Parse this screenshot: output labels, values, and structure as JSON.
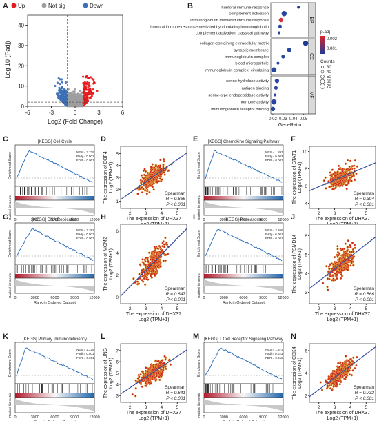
{
  "colors": {
    "up": "#e41a1c",
    "notsig": "#9e9e9e",
    "down": "#3b6fb6",
    "gsea_line": "#2c6fbb",
    "scatter_pt": "#cc2a1f",
    "fit_line": "#3a4fa0"
  },
  "chart_data": [
    {
      "panel": "A",
      "type": "scatter",
      "legend": [
        "Up",
        "Not sig",
        "Down"
      ],
      "xlabel": "Log2 (Fold Change)",
      "ylabel": "-Log 10 (Padj)",
      "xticks": [
        "-6",
        "-3",
        "0",
        "3",
        "6"
      ],
      "yticks": [
        "0",
        "10",
        "20",
        "30",
        "40"
      ],
      "xlim": [
        -6,
        6
      ],
      "ylim": [
        0,
        45
      ]
    },
    {
      "panel": "B",
      "type": "scatter",
      "xlabel": "GeneRatio",
      "xticks": [
        "0.02",
        "0.03",
        "0.04",
        "0.05"
      ],
      "groups": [
        {
          "name": "BP",
          "terms": [
            "humoral immune response",
            "complement activation",
            "immunoglobulin mediated immune response",
            "humoral immune response mediated by circulating immunoglobulin",
            "complement activation, classical pathway"
          ],
          "x": [
            0.045,
            0.031,
            0.028,
            0.027,
            0.026
          ]
        },
        {
          "name": "CC",
          "terms": [
            "collagen-containing extracellular matrix",
            "synaptic membrane",
            "immunoglobulin complex",
            "blood microparticle",
            "immunoglobulin complex, circulating"
          ],
          "x": [
            0.052,
            0.036,
            0.03,
            0.025,
            0.021
          ]
        },
        {
          "name": "MF",
          "terms": [
            "serine hydrolase activity",
            "antigen binding",
            "serine-type endopeptidase activity",
            "hormone activity",
            "immunoglobulin receptor binding"
          ],
          "x": [
            0.024,
            0.023,
            0.022,
            0.021,
            0.02
          ]
        }
      ],
      "legend_padj": {
        "title": "p.adj",
        "ticks": [
          "0.002",
          "0.001"
        ]
      },
      "legend_counts": {
        "title": "Counts",
        "values": [
          "30",
          "40",
          "50",
          "60",
          "70"
        ]
      }
    },
    {
      "panel": "C",
      "type": "line",
      "title": "[KEGG] Cell Cycle",
      "stats": [
        "NES = 2.729",
        "Padj = 0.001",
        "FDR = 0.001"
      ],
      "ylabel": "Enrichment Score",
      "ylabel2": "Ranked list metric",
      "xlabel": "Rank in Ordered Dataset",
      "xticks": [
        "0",
        "3000",
        "6000",
        "9000",
        "12000"
      ]
    },
    {
      "panel": "D",
      "type": "scatter",
      "ylabel": "The expression of DBF4",
      "ylabel2": "Log2 (TPM+1)",
      "xlabel": "The expression of DHX37",
      "xlabel2": "Log2 (TPM+1)",
      "method": "Spearman",
      "r": "R = 0.665",
      "p": "P < 0.001",
      "xticks": [
        "2",
        "3",
        "4",
        "5"
      ],
      "yticks": [
        "1",
        "2",
        "3",
        "4",
        "5"
      ]
    },
    {
      "panel": "E",
      "type": "line",
      "title": "[KEGG] Chemokine Signaling Pathway",
      "stats": [
        "NES = 1.897",
        "Padj = 0.003",
        "FDR = 0.003"
      ],
      "ylabel": "Enrichment Score",
      "ylabel2": "Ranked list metric",
      "xlabel": "Rank in Ordered Dataset",
      "xticks": [
        "0",
        "3000",
        "6000",
        "9000",
        "12000"
      ]
    },
    {
      "panel": "F",
      "type": "scatter",
      "ylabel": "The expression of STAT1",
      "ylabel2": "Log2 (TPM+1)",
      "xlabel": "The expression of DHX37",
      "xlabel2": "Log2 (TPM+1)",
      "method": "Spearman",
      "r": "R = 0.394",
      "p": "P < 0.001",
      "xticks": [
        "2",
        "3",
        "4",
        "5"
      ],
      "yticks": [
        "4",
        "6",
        "8",
        "10"
      ]
    },
    {
      "panel": "G",
      "type": "line",
      "title": "[KEGG] DNA Replication",
      "stats": [
        "NES = 2.392",
        "Padj = 0.001",
        "FDR = 0.001"
      ],
      "ylabel": "Enrichment Score",
      "ylabel2": "Ranked list metric",
      "xlabel": "Rank in Ordered Dataset",
      "xticks": [
        "0",
        "3000",
        "6000",
        "9000",
        "12000"
      ]
    },
    {
      "panel": "H",
      "type": "scatter",
      "ylabel": "The expression of MCM2",
      "ylabel2": "Log2 (TPM+1)",
      "xlabel": "The expression of DHX37",
      "xlabel2": "Log2 (TPM+1)",
      "method": "Spearman",
      "r": "R = 0.647",
      "p": "P < 0.001",
      "xticks": [
        "2",
        "3",
        "4",
        "5"
      ],
      "yticks": [
        "0",
        "2",
        "4",
        "6"
      ]
    },
    {
      "panel": "I",
      "type": "line",
      "title": "[KEGG] Proteasome",
      "stats": [
        "NES = 2.366",
        "Padj = 0.001",
        "FDR = 0.001"
      ],
      "ylabel": "Enrichment Score",
      "ylabel2": "Ranked list metric",
      "xlabel": "Rank in Ordered Dataset",
      "xticks": [
        "0",
        "3000",
        "6000",
        "9000",
        "12000"
      ]
    },
    {
      "panel": "J",
      "type": "scatter",
      "ylabel": "The expression of PSMD14",
      "ylabel2": "Log2 (TPM+1)",
      "xlabel": "The expression of DHX37",
      "xlabel2": "Log2 (TPM+1)",
      "method": "Spearman",
      "r": "R = 0.566",
      "p": "P < 0.001",
      "xticks": [
        "2",
        "3",
        "4",
        "5"
      ],
      "yticks": [
        "3",
        "4",
        "5",
        "6"
      ]
    },
    {
      "panel": "K",
      "type": "line",
      "title": "[KEGG] Primary Immunodeficiency",
      "stats": [
        "NES = 2.218",
        "Padj = 0.001",
        "FDR = 0.001"
      ],
      "ylabel": "Enrichment Score",
      "ylabel2": "Ranked list metric",
      "xlabel": "Rank in Ordered Dataset",
      "xticks": [
        "0",
        "3000",
        "6000",
        "9000",
        "12000"
      ]
    },
    {
      "panel": "L",
      "type": "scatter",
      "ylabel": "The expression of UNG",
      "ylabel2": "Log2 (TPM+1)",
      "xlabel": "The expression of DHX37",
      "xlabel2": "Log2 (TPM+1)",
      "method": "Spearman",
      "r": "R = 0.641",
      "p": "P < 0.001",
      "xticks": [
        "2",
        "3",
        "4",
        "5"
      ],
      "yticks": [
        "3",
        "4",
        "5",
        "6",
        "7"
      ]
    },
    {
      "panel": "M",
      "type": "line",
      "title": "[KEGG] T Cell Receptor Signaling Pathway",
      "stats": [
        "NES = 1.573",
        "Padj = 0.023",
        "FDR = 0.018"
      ],
      "ylabel": "Enrichment Score",
      "ylabel2": "Ranked list metric",
      "xlabel": "Rank in Ordered Dataset",
      "xticks": [
        "0",
        "3000",
        "6000",
        "9000",
        "12000"
      ]
    },
    {
      "panel": "N",
      "type": "scatter",
      "ylabel": "The expression of CDK4",
      "ylabel2": "Log2 (TPM+1)",
      "xlabel": "The expression of DHX37",
      "xlabel2": "Log2 (TPM+1)",
      "method": "Spearman",
      "r": "R = 0.732",
      "p": "P < 0.001",
      "xticks": [
        "2",
        "3",
        "4",
        "5"
      ],
      "yticks": [
        "2",
        "4",
        "6"
      ]
    }
  ]
}
